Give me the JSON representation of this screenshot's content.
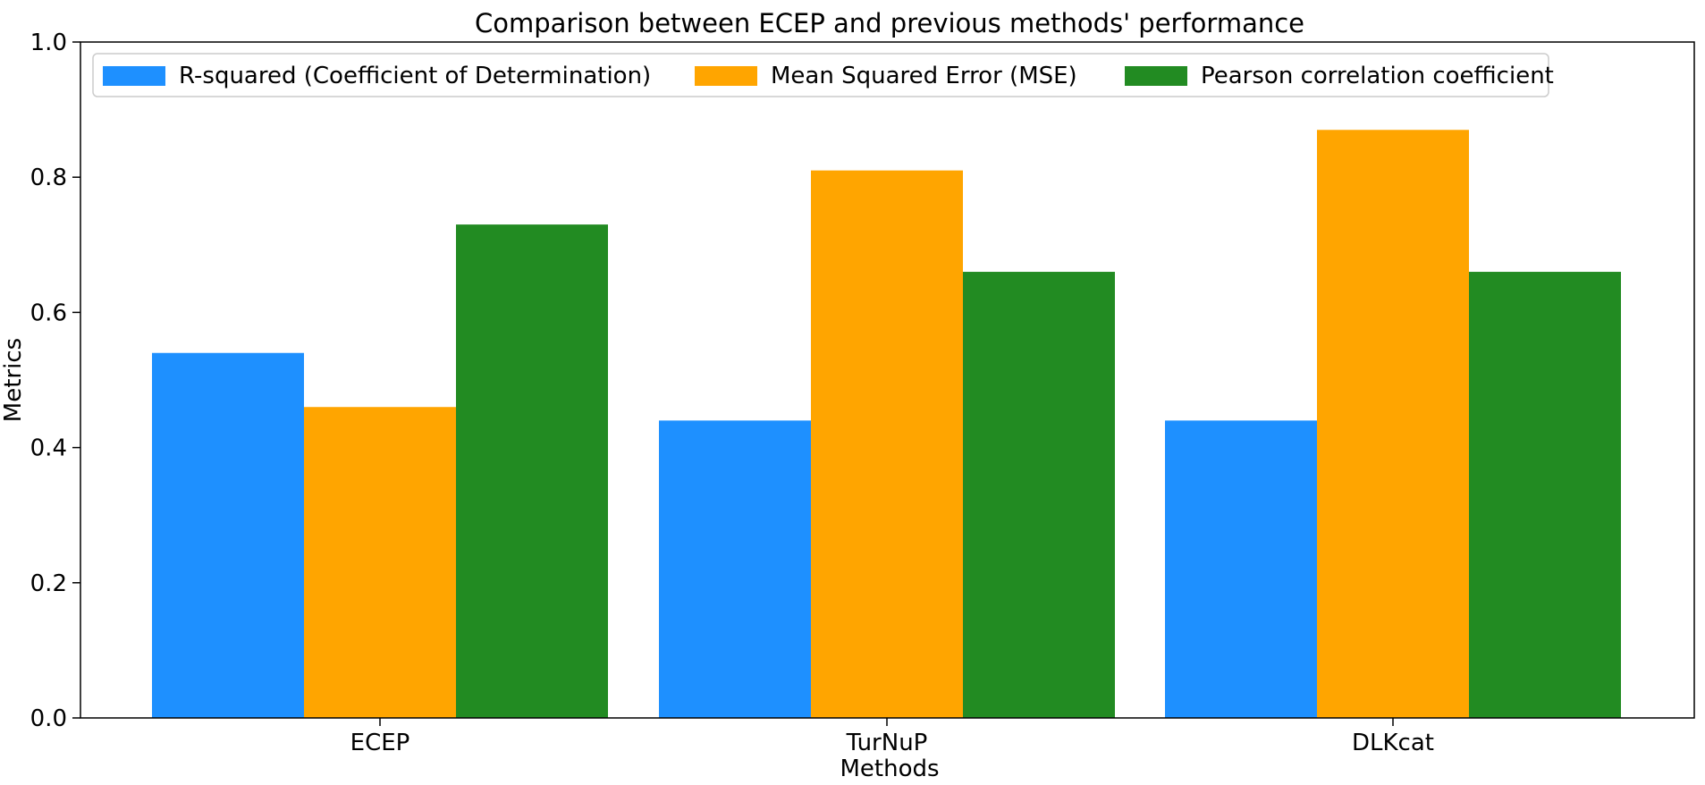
{
  "chart_data": {
    "type": "bar",
    "title": "Comparison between ECEP and previous methods' performance",
    "xlabel": "Methods",
    "ylabel": "Metrics",
    "categories": [
      "ECEP",
      "TurNuP",
      "DLKcat"
    ],
    "ylim": [
      0,
      1.0
    ],
    "yticks": [
      "0.0",
      "0.2",
      "0.4",
      "0.6",
      "0.8",
      "1.0"
    ],
    "grid": false,
    "legend_position": "top",
    "series": [
      {
        "name": "R-squared (Coefficient of Determination)",
        "color": "#1e90ff",
        "values": [
          0.54,
          0.44,
          0.44
        ]
      },
      {
        "name": "Mean Squared Error (MSE)",
        "color": "#ffa500",
        "values": [
          0.46,
          0.81,
          0.87
        ]
      },
      {
        "name": "Pearson correlation coefficient",
        "color": "#228b22",
        "values": [
          0.73,
          0.66,
          0.66
        ]
      }
    ]
  }
}
